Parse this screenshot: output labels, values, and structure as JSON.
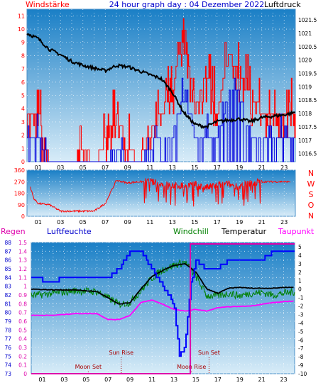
{
  "header": {
    "left_label": "Windstärke",
    "title": "24 hour graph day : 04 Dezember 2022",
    "right_label": "Luftdruck"
  },
  "panel3_header": {
    "regen": "Regen",
    "luftfeuchte": "Luftfeuchte",
    "windchill": "Windchill",
    "temperatur": "Temperatur",
    "taupunkt": "Taupunkt"
  },
  "colors": {
    "wind": "#ff0000",
    "gust_bars": "#0000dd",
    "pressure": "#000000",
    "direction": "#ff0000",
    "rain": "#dd00aa",
    "humidity": "#0000ff",
    "windchill": "#008000",
    "temperature": "#000000",
    "dewpoint": "#ff00ff",
    "header_title": "#0000cc",
    "bg_top": "#1a7fc6",
    "bg_bottom": "#d8ecf8"
  },
  "chart_data": [
    {
      "type": "line",
      "panel": "wind_pressure",
      "x_ticks": [
        "01",
        "03",
        "05",
        "07",
        "09",
        "11",
        "13",
        "15",
        "17",
        "19",
        "21",
        "23"
      ],
      "y_left_ticks": [
        "0",
        "1",
        "2",
        "3",
        "4",
        "5",
        "6",
        "7",
        "8",
        "9",
        "10",
        "11"
      ],
      "y_right_ticks": [
        "1016.5",
        "1017",
        "1017.5",
        "1018",
        "1018.5",
        "1019",
        "1019.5",
        "1020",
        "1020.5",
        "1021",
        "1021.5"
      ],
      "ylim_left": [
        0,
        11.5
      ],
      "ylim_right": [
        1016.2,
        1021.9
      ],
      "grid": true,
      "series": [
        {
          "key": "pressure",
          "axis": "right",
          "x": [
            0,
            1,
            2,
            3,
            4,
            5,
            6,
            7,
            8,
            9,
            10,
            11,
            12,
            13,
            14,
            15,
            16,
            17,
            18,
            19,
            20,
            21,
            22,
            23,
            24
          ],
          "values": [
            1021.0,
            1020.8,
            1020.4,
            1020.2,
            1019.95,
            1019.8,
            1019.7,
            1019.6,
            1019.8,
            1019.75,
            1019.6,
            1019.45,
            1019.3,
            1018.8,
            1018.05,
            1017.6,
            1017.5,
            1017.7,
            1017.75,
            1017.8,
            1017.7,
            1017.85,
            1017.9,
            1017.95,
            1018.05
          ]
        },
        {
          "key": "wind",
          "axis": "left",
          "x": [
            0,
            1,
            2,
            3,
            4,
            5,
            6,
            7,
            8,
            9,
            10,
            11,
            12,
            13,
            14,
            15,
            16,
            17,
            18,
            19,
            20,
            21,
            22,
            23,
            24
          ],
          "values": [
            3.7,
            3.7,
            0,
            0,
            0,
            1,
            0,
            1.5,
            3.7,
            1,
            0,
            2,
            3.7,
            5,
            11,
            3.7,
            7,
            3.7,
            8,
            7,
            5.2,
            3.7,
            3.7,
            3.7,
            3.7
          ]
        },
        {
          "key": "gust",
          "axis": "left",
          "x": [
            0,
            1,
            2,
            3,
            4,
            5,
            6,
            7,
            8,
            9,
            10,
            11,
            12,
            13,
            14,
            15,
            16,
            17,
            18,
            19,
            20,
            21,
            22,
            23,
            24
          ],
          "values": [
            2,
            2,
            0,
            0,
            0,
            0,
            0,
            0,
            1,
            0,
            0,
            1,
            2,
            2,
            5,
            2,
            2,
            2,
            5,
            5,
            2,
            2,
            2,
            2,
            2
          ]
        }
      ]
    },
    {
      "type": "line",
      "panel": "wind_direction",
      "x_ticks": [
        "01",
        "03",
        "05",
        "07",
        "09",
        "11",
        "13",
        "15",
        "17",
        "19",
        "21",
        "23"
      ],
      "y_ticks": [
        "0",
        "90",
        "180",
        "270",
        "360"
      ],
      "y_right_labels": [
        "N",
        "W",
        "S",
        "O",
        "N"
      ],
      "ylim": [
        0,
        360
      ],
      "grid": true,
      "series": [
        {
          "key": "direction",
          "x": [
            0,
            0.6,
            1,
            2,
            3,
            4,
            5,
            6,
            7,
            8,
            9,
            10,
            11,
            12,
            13,
            14,
            15,
            16,
            17,
            18,
            19,
            20,
            21,
            22,
            23,
            24
          ],
          "values": [
            320,
            140,
            100,
            90,
            40,
            40,
            40,
            40,
            100,
            280,
            260,
            270,
            270,
            250,
            240,
            240,
            250,
            220,
            245,
            250,
            230,
            260,
            270,
            270,
            270,
            270
          ]
        }
      ]
    },
    {
      "type": "line",
      "panel": "rain_humidity_temperature",
      "x_ticks": [
        "01",
        "03",
        "05",
        "07",
        "09",
        "11",
        "13",
        "15",
        "17",
        "19",
        "21",
        "23"
      ],
      "y_rain_ticks": [
        "0",
        "0.1",
        "0.2",
        "0.3",
        "0.4",
        "0.5",
        "0.6",
        "0.7",
        "0.8",
        "0.9",
        "1",
        "1.1",
        "1.2",
        "1.3",
        "1.4",
        "1.5"
      ],
      "y_humidity_ticks": [
        "73",
        "74",
        "75",
        "76",
        "77",
        "78",
        "79",
        "80",
        "81",
        "82",
        "83",
        "84",
        "85",
        "86",
        "87",
        "88"
      ],
      "y_temperature_ticks": [
        "5",
        "4",
        "3",
        "2",
        "1",
        "0",
        "-1",
        "-2",
        "-3",
        "-4",
        "-5",
        "-6",
        "-7",
        "-8",
        "-9",
        "-10"
      ],
      "ylim_humidity": [
        73,
        88
      ],
      "ylim_temperature": [
        -10,
        5.5
      ],
      "grid": true,
      "series": [
        {
          "key": "humidity",
          "axis": "humidity",
          "x": [
            0,
            2,
            3,
            4,
            7,
            8,
            9,
            10,
            11,
            12,
            13,
            13.5,
            14,
            14.5,
            15,
            16,
            17,
            18,
            20,
            21,
            22,
            23,
            24
          ],
          "values": [
            84,
            83.5,
            84,
            84,
            84,
            85,
            87,
            87,
            85,
            83,
            81,
            75,
            76,
            83,
            86,
            85,
            85,
            86,
            86,
            86,
            87,
            87,
            87
          ]
        },
        {
          "key": "temperature",
          "axis": "temperature",
          "x": [
            0,
            2,
            4,
            6,
            8,
            9,
            10,
            11,
            12,
            13,
            14,
            15,
            16,
            17,
            18,
            19,
            20,
            21,
            22,
            23,
            24
          ],
          "values": [
            0,
            -0.1,
            -0.1,
            -0.3,
            -1.8,
            -1.6,
            0,
            1.5,
            2.2,
            2.8,
            3.0,
            2.0,
            0,
            -0.5,
            0.1,
            0.2,
            0.1,
            0.1,
            0.1,
            0.2,
            0.2
          ]
        },
        {
          "key": "windchill",
          "axis": "temperature",
          "x": [
            0,
            2,
            4,
            6,
            8,
            9,
            10,
            11,
            12,
            13,
            14,
            15,
            16,
            17,
            18,
            19,
            20,
            21,
            22,
            23,
            24
          ],
          "values": [
            -0.8,
            -0.5,
            -0.2,
            -0.3,
            -1.8,
            -1.6,
            -0.2,
            1.3,
            2.3,
            2.8,
            3.2,
            1.5,
            -0.8,
            -0.8,
            -0.5,
            -0.8,
            -0.5,
            -0.4,
            -0.7,
            -0.5,
            -0.3
          ]
        },
        {
          "key": "dewpoint",
          "axis": "temperature",
          "x": [
            0,
            2,
            4,
            6,
            7,
            8,
            9,
            10,
            11,
            12,
            13,
            14,
            15,
            16,
            17,
            18,
            20,
            22,
            23,
            24
          ],
          "values": [
            -3.1,
            -3.1,
            -2.9,
            -2.9,
            -3.6,
            -3.6,
            -3.1,
            -1.6,
            -1.3,
            -1.8,
            -2.4,
            -2.6,
            -2.4,
            -2.6,
            -2.2,
            -2.1,
            -2.0,
            -1.6,
            -1.5,
            -1.4
          ]
        },
        {
          "key": "rain",
          "axis": "rain",
          "x": [
            0,
            14,
            14.5,
            15,
            24
          ],
          "values": [
            0,
            0,
            1.5,
            1.5,
            1.5
          ]
        }
      ],
      "annotations": [
        {
          "text": "Moon Set",
          "x": 5.2
        },
        {
          "text": "Sun Rise",
          "x": 8.2
        },
        {
          "text": "Moon Rise",
          "x": 14.6
        },
        {
          "text": "Sun Set",
          "x": 16.2
        }
      ]
    }
  ]
}
